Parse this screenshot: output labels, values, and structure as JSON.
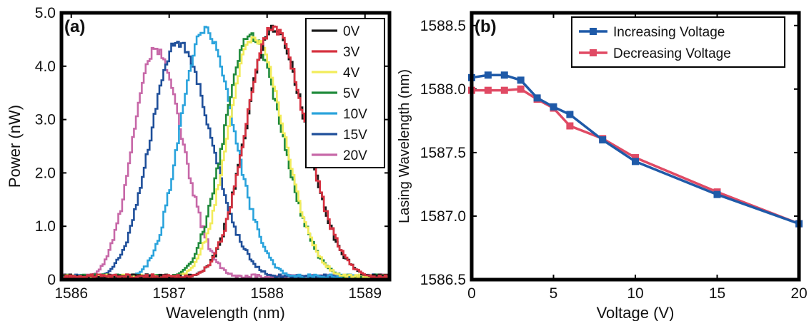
{
  "chart_data": [
    {
      "panel_label": "(a)",
      "type": "line",
      "xlabel": "Wavelength (nm)",
      "ylabel": "Power (nW)",
      "xlim": [
        1585.9,
        1589.25
      ],
      "ylim": [
        0,
        5.0
      ],
      "xticks": [
        1586,
        1587,
        1588,
        1589
      ],
      "xtick_labels": [
        "1586",
        "1587",
        "1588",
        "1589"
      ],
      "yticks": [
        0,
        1,
        2,
        3,
        4,
        5
      ],
      "ytick_labels": [
        "0",
        "1.0",
        "2.0",
        "3.0",
        "4.0",
        "5.0"
      ],
      "legend_position": "top-right",
      "series": [
        {
          "name": "0V",
          "color": "#1a1a1a",
          "peak_x": 1588.05,
          "peak_y": 4.7,
          "width": 0.3
        },
        {
          "name": "3V",
          "color": "#d6303f",
          "peak_x": 1588.05,
          "peak_y": 4.72,
          "width": 0.3
        },
        {
          "name": "4V",
          "color": "#f2ec5a",
          "peak_x": 1587.85,
          "peak_y": 4.55,
          "width": 0.28
        },
        {
          "name": "5V",
          "color": "#1f8a3a",
          "peak_x": 1587.82,
          "peak_y": 4.55,
          "width": 0.29
        },
        {
          "name": "10V",
          "color": "#2aa3dc",
          "peak_x": 1587.35,
          "peak_y": 4.68,
          "width": 0.27
        },
        {
          "name": "15V",
          "color": "#1f4f9a",
          "peak_x": 1587.08,
          "peak_y": 4.45,
          "width": 0.3
        },
        {
          "name": "20V",
          "color": "#c768a8",
          "peak_x": 1586.85,
          "peak_y": 4.3,
          "width": 0.25
        }
      ]
    },
    {
      "panel_label": "(b)",
      "type": "line",
      "xlabel": "Voltage (V)",
      "ylabel": "Lasing Wavelength (nm)",
      "xlim": [
        0,
        20
      ],
      "ylim": [
        1586.5,
        1588.6
      ],
      "xticks": [
        0,
        5,
        10,
        15,
        20
      ],
      "xtick_labels": [
        "0",
        "5",
        "10",
        "15",
        "20"
      ],
      "yticks": [
        1586.5,
        1587.0,
        1587.5,
        1588.0,
        1588.5
      ],
      "ytick_labels": [
        "1586.5",
        "1587.0",
        "1587.5",
        "1588.0",
        "1588.5"
      ],
      "legend_position": "top-right",
      "series": [
        {
          "name": "Increasing Voltage",
          "color": "#1f5aa8",
          "x": [
            0,
            1,
            2,
            3,
            4,
            5,
            6,
            8,
            10,
            15,
            20
          ],
          "y": [
            1588.09,
            1588.11,
            1588.11,
            1588.07,
            1587.93,
            1587.86,
            1587.8,
            1587.6,
            1587.43,
            1587.17,
            1586.94
          ]
        },
        {
          "name": "Decreasing Voltage",
          "color": "#e04a64",
          "x": [
            0,
            1,
            2,
            3,
            4,
            5,
            6,
            8,
            10,
            15,
            20
          ],
          "y": [
            1587.99,
            1587.99,
            1587.99,
            1588.0,
            1587.92,
            1587.85,
            1587.71,
            1587.61,
            1587.46,
            1587.19,
            1586.94
          ]
        }
      ]
    }
  ]
}
